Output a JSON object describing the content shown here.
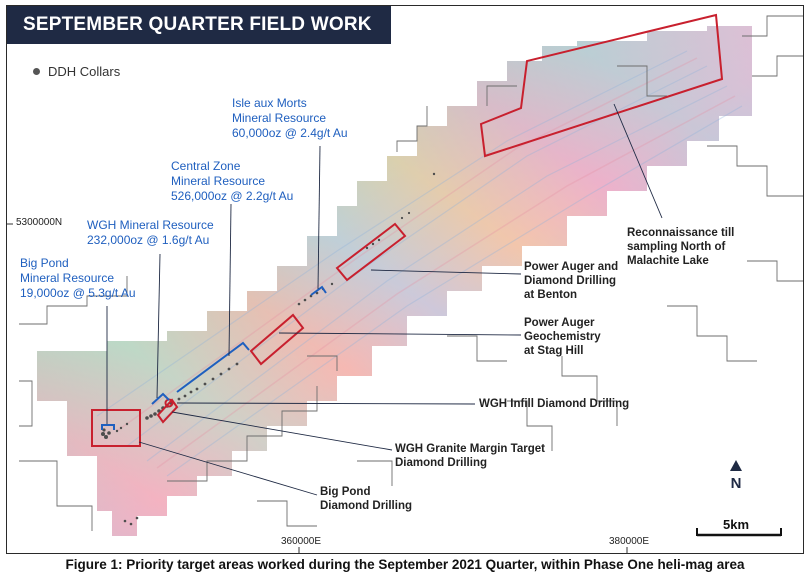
{
  "title": "SEPTEMBER QUARTER FIELD WORK",
  "legend": {
    "label": "DDH Collars"
  },
  "grid_labels": {
    "northing": "5300000N",
    "easting_1": "360000E",
    "easting_2": "380000E"
  },
  "resources": {
    "isle_aux_morts": [
      "Isle aux Morts",
      "Mineral Resource",
      "60,000oz @ 2.4g/t Au"
    ],
    "central_zone": [
      "Central Zone",
      "Mineral Resource",
      "526,000oz @ 2.2g/t Au"
    ],
    "wgh": [
      "WGH Mineral Resource",
      "232,000oz @ 1.6g/t Au"
    ],
    "big_pond": [
      "Big Pond",
      "Mineral Resource",
      "19,000oz @ 5.3g/t Au"
    ]
  },
  "targets": {
    "reconnaissance": [
      "Reconnaissance till",
      "sampling North of",
      "Malachite Lake"
    ],
    "benton": [
      "Power Auger and",
      "Diamond Drilling",
      "at Benton"
    ],
    "stag_hill": [
      "Power Auger",
      "Geochemistry",
      "at Stag Hill"
    ],
    "wgh_infill": [
      "WGH Infill Diamond Drilling"
    ],
    "wgh_granite": [
      "WGH Granite Margin Target",
      "Diamond Drilling"
    ],
    "big_pond_drilling": [
      "Big Pond",
      "Diamond Drilling"
    ]
  },
  "north_arrow": "N",
  "scale_bar": "5km",
  "caption": "Figure 1: Priority target areas worked during the September 2021 Quarter, within Phase One heli-mag area",
  "colors": {
    "title_bg": "#1f2a44",
    "resource_text": "#1f5fbf",
    "target_box": "#c8202e",
    "resource_bracket": "#1f5fbf"
  }
}
